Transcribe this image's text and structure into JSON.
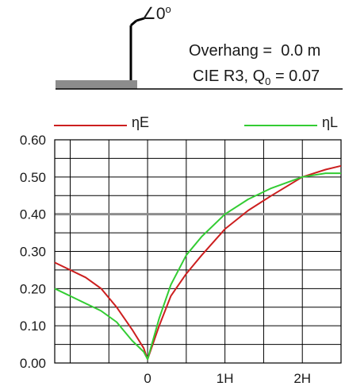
{
  "luminaire": {
    "tilt_symbol": "∠",
    "tilt_value": "0",
    "tilt_unit": "o",
    "overhang_label": "Overhang =",
    "overhang_value": "0.0 m",
    "surface_label": "CIE R3, Q",
    "surface_subscript": "0",
    "surface_value": "= 0.07"
  },
  "colors": {
    "eta_e": "#cc1f1f",
    "eta_l": "#33cc33",
    "grid": "#000000",
    "highlight_gridline": "#8c8c8c",
    "road": "#8c8c8c"
  },
  "chart_data": {
    "type": "line",
    "title": "",
    "xlabel": "",
    "ylabel": "",
    "x_ticks": [
      {
        "x": 0,
        "label": "0"
      },
      {
        "x": 1,
        "label": "1H"
      },
      {
        "x": 2,
        "label": "2H"
      }
    ],
    "y_ticks": [
      "0.00",
      "0.10",
      "0.20",
      "0.30",
      "0.40",
      "0.50",
      "0.60"
    ],
    "xlim": [
      -1.2,
      2.5
    ],
    "ylim": [
      0,
      0.6
    ],
    "grid": true,
    "highlight_y": 0.4,
    "legend": [
      {
        "name": "ηE",
        "position": "top-left"
      },
      {
        "name": "ηL",
        "position": "top-right"
      }
    ],
    "series": [
      {
        "name": "ηE",
        "color": "#cc1f1f",
        "x": [
          -1.2,
          -0.8,
          -0.6,
          -0.4,
          -0.2,
          -0.05,
          0,
          0.15,
          0.3,
          0.5,
          0.7,
          1.0,
          1.3,
          1.6,
          2.0,
          2.3,
          2.5
        ],
        "y": [
          0.27,
          0.23,
          0.2,
          0.15,
          0.09,
          0.04,
          0.01,
          0.1,
          0.18,
          0.24,
          0.29,
          0.36,
          0.41,
          0.45,
          0.5,
          0.52,
          0.53
        ]
      },
      {
        "name": "ηL",
        "color": "#33cc33",
        "x": [
          -1.2,
          -0.9,
          -0.6,
          -0.4,
          -0.2,
          -0.05,
          0,
          0.15,
          0.3,
          0.5,
          0.7,
          1.0,
          1.3,
          1.6,
          2.0,
          2.3,
          2.5
        ],
        "y": [
          0.2,
          0.17,
          0.14,
          0.11,
          0.06,
          0.03,
          0.01,
          0.12,
          0.21,
          0.29,
          0.34,
          0.4,
          0.44,
          0.47,
          0.5,
          0.51,
          0.51
        ]
      }
    ]
  }
}
